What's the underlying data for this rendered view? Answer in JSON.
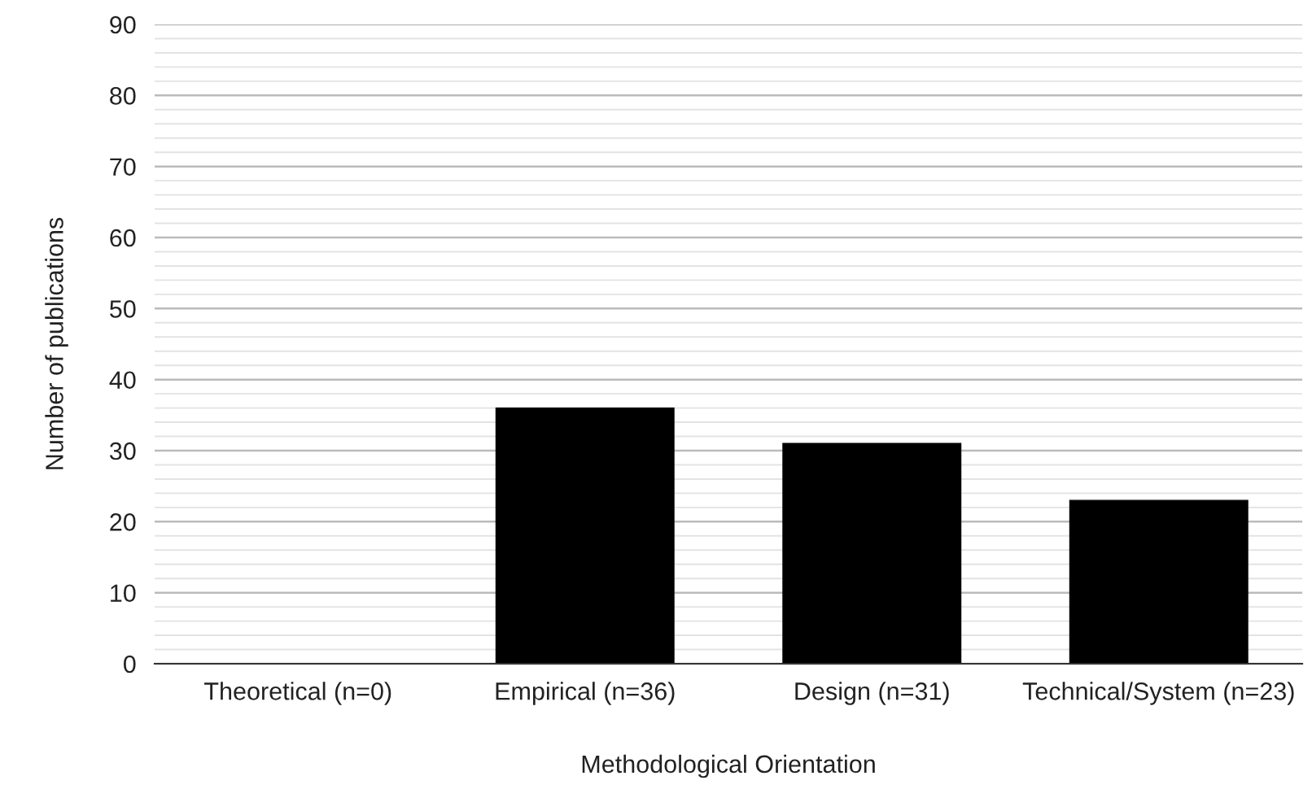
{
  "chart_data": {
    "type": "bar",
    "xlabel": "Methodological Orientation",
    "ylabel": "Number of publications",
    "categories": [
      "Theoretical (n=0)",
      "Empirical (n=36)",
      "Design (n=31)",
      "Technical/System (n=23)"
    ],
    "values": [
      0,
      36,
      31,
      23
    ],
    "color": "#000000",
    "ylim": [
      0,
      90
    ],
    "yticks": [
      0,
      {
        "value": 2,
        "label": null
      },
      {
        "value": 4,
        "label": null
      },
      {
        "value": 6,
        "label": null
      },
      {
        "value": 8,
        "label": null
      },
      10,
      {
        "value": 12,
        "label": null
      },
      {
        "value": 14,
        "label": null
      },
      {
        "value": 16,
        "label": null
      },
      {
        "value": 18,
        "label": null
      },
      20,
      {
        "value": 22,
        "label": null
      },
      {
        "value": 24,
        "label": null
      },
      {
        "value": 26,
        "label": null
      },
      {
        "value": 28,
        "label": null
      },
      30,
      {
        "value": 32,
        "label": null
      },
      {
        "value": 34,
        "label": null
      },
      {
        "value": 36,
        "label": null
      },
      {
        "value": 38,
        "label": null
      },
      40,
      {
        "value": 42,
        "label": null
      },
      {
        "value": 44,
        "label": null
      },
      {
        "value": 46,
        "label": null
      },
      {
        "value": 48,
        "label": null
      },
      50,
      {
        "value": 52,
        "label": null
      },
      {
        "value": 54,
        "label": null
      },
      {
        "value": 56,
        "label": null
      },
      {
        "value": 58,
        "label": null
      },
      60,
      {
        "value": 62,
        "label": null
      },
      {
        "value": 64,
        "label": null
      },
      {
        "value": 66,
        "label": null
      },
      {
        "value": 68,
        "label": null
      },
      70,
      {
        "value": 72,
        "label": null
      },
      {
        "value": 74,
        "label": null
      },
      {
        "value": 76,
        "label": null
      },
      {
        "value": 78,
        "label": null
      },
      80,
      {
        "value": 82,
        "label": null
      },
      {
        "value": 84,
        "label": null
      },
      {
        "value": 86,
        "label": null
      },
      {
        "value": 88,
        "label": null
      },
      90
    ],
    "grid": "y",
    "legend": false
  }
}
